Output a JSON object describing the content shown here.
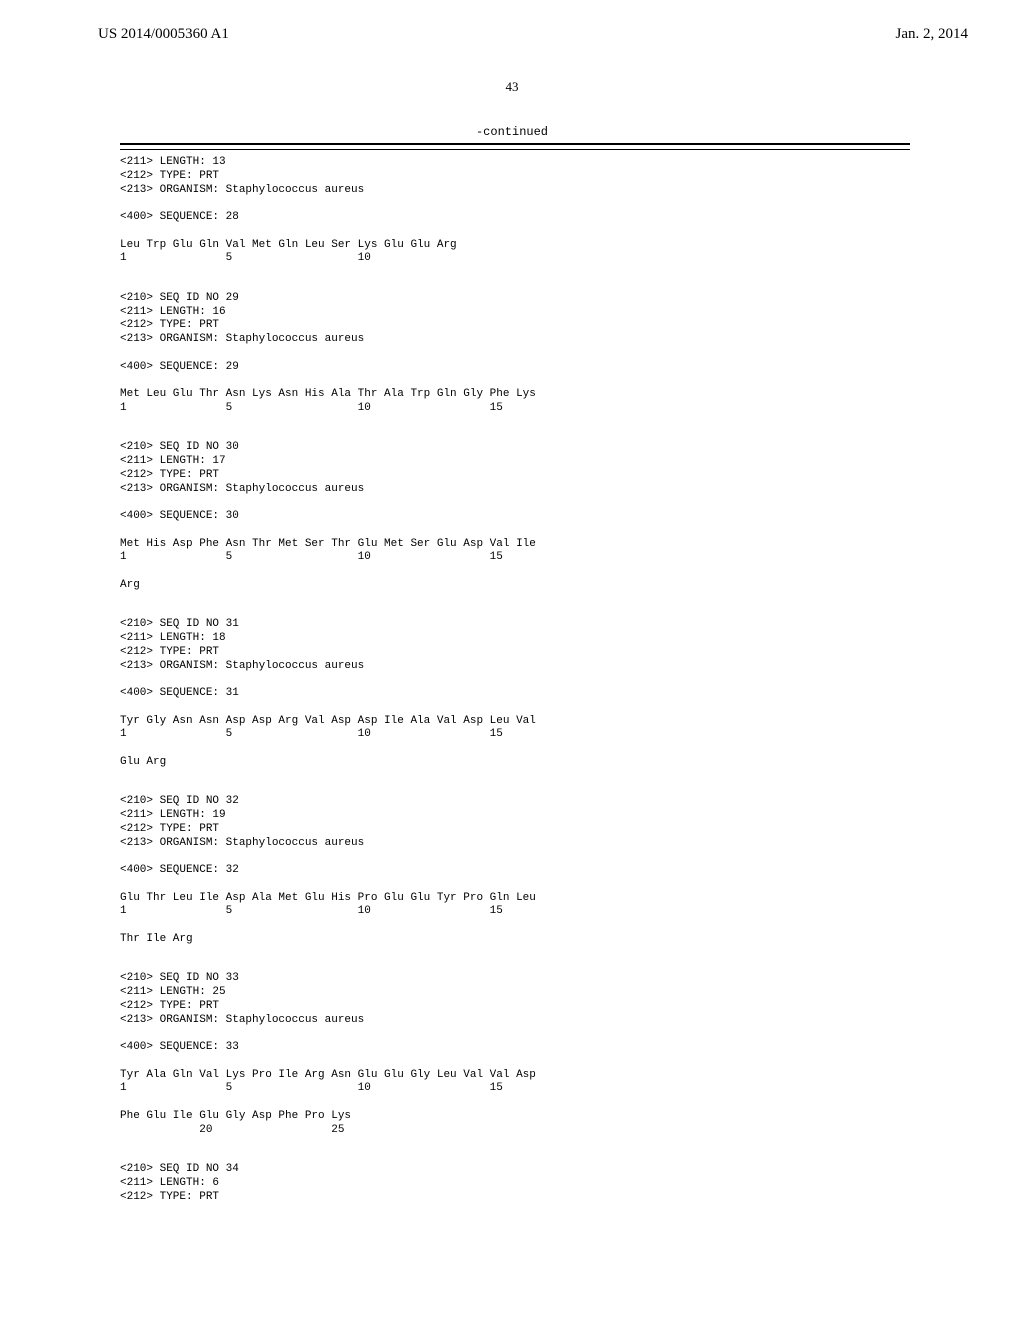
{
  "header": {
    "left": "US 2014/0005360 A1",
    "right": "Jan. 2, 2014"
  },
  "page_number": "43",
  "continued_label": "-continued",
  "sequences": [
    {
      "lines": [
        "<211> LENGTH: 13",
        "<212> TYPE: PRT",
        "<213> ORGANISM: Staphylococcus aureus",
        "",
        "<400> SEQUENCE: 28",
        "",
        "Leu Trp Glu Gln Val Met Gln Leu Ser Lys Glu Glu Arg",
        "1               5                   10"
      ]
    },
    {
      "lines": [
        "<210> SEQ ID NO 29",
        "<211> LENGTH: 16",
        "<212> TYPE: PRT",
        "<213> ORGANISM: Staphylococcus aureus",
        "",
        "<400> SEQUENCE: 29",
        "",
        "Met Leu Glu Thr Asn Lys Asn His Ala Thr Ala Trp Gln Gly Phe Lys",
        "1               5                   10                  15"
      ]
    },
    {
      "lines": [
        "<210> SEQ ID NO 30",
        "<211> LENGTH: 17",
        "<212> TYPE: PRT",
        "<213> ORGANISM: Staphylococcus aureus",
        "",
        "<400> SEQUENCE: 30",
        "",
        "Met His Asp Phe Asn Thr Met Ser Thr Glu Met Ser Glu Asp Val Ile",
        "1               5                   10                  15",
        "",
        "Arg"
      ]
    },
    {
      "lines": [
        "<210> SEQ ID NO 31",
        "<211> LENGTH: 18",
        "<212> TYPE: PRT",
        "<213> ORGANISM: Staphylococcus aureus",
        "",
        "<400> SEQUENCE: 31",
        "",
        "Tyr Gly Asn Asn Asp Asp Arg Val Asp Asp Ile Ala Val Asp Leu Val",
        "1               5                   10                  15",
        "",
        "Glu Arg"
      ]
    },
    {
      "lines": [
        "<210> SEQ ID NO 32",
        "<211> LENGTH: 19",
        "<212> TYPE: PRT",
        "<213> ORGANISM: Staphylococcus aureus",
        "",
        "<400> SEQUENCE: 32",
        "",
        "Glu Thr Leu Ile Asp Ala Met Glu His Pro Glu Glu Tyr Pro Gln Leu",
        "1               5                   10                  15",
        "",
        "Thr Ile Arg"
      ]
    },
    {
      "lines": [
        "<210> SEQ ID NO 33",
        "<211> LENGTH: 25",
        "<212> TYPE: PRT",
        "<213> ORGANISM: Staphylococcus aureus",
        "",
        "<400> SEQUENCE: 33",
        "",
        "Tyr Ala Gln Val Lys Pro Ile Arg Asn Glu Glu Gly Leu Val Val Asp",
        "1               5                   10                  15",
        "",
        "Phe Glu Ile Glu Gly Asp Phe Pro Lys",
        "            20                  25"
      ]
    },
    {
      "lines": [
        "<210> SEQ ID NO 34",
        "<211> LENGTH: 6",
        "<212> TYPE: PRT"
      ]
    }
  ]
}
